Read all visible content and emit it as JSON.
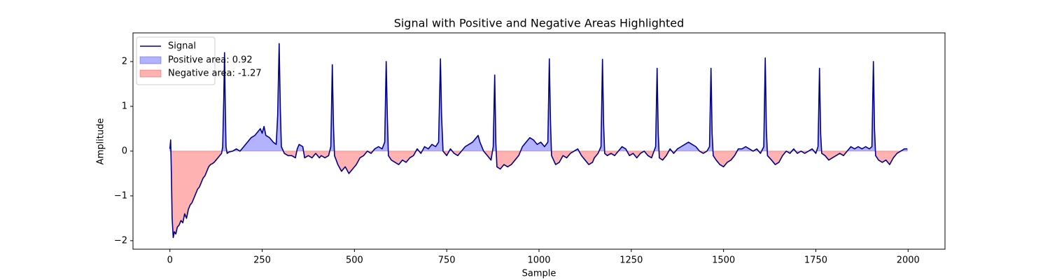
{
  "chart_data": {
    "type": "line",
    "title": "Signal with Positive and Negative Areas Highlighted",
    "xlabel": "Sample",
    "ylabel": "Amplitude",
    "x": [
      0,
      2,
      4,
      6,
      9,
      12,
      16,
      20,
      25,
      30,
      35,
      40,
      45,
      50,
      55,
      60,
      65,
      70,
      75,
      80,
      85,
      90,
      95,
      100,
      105,
      110,
      115,
      120,
      125,
      130,
      135,
      140,
      143,
      146,
      148,
      150,
      152,
      155,
      160,
      170,
      180,
      190,
      200,
      210,
      220,
      230,
      240,
      245,
      250,
      255,
      260,
      270,
      280,
      288,
      292,
      296,
      299,
      302,
      310,
      320,
      330,
      340,
      345,
      350,
      360,
      365,
      375,
      385,
      395,
      405,
      410,
      420,
      430,
      436,
      440,
      443,
      446,
      455,
      465,
      475,
      485,
      495,
      505,
      515,
      525,
      535,
      545,
      555,
      565,
      575,
      582,
      586,
      589,
      592,
      600,
      610,
      620,
      630,
      640,
      650,
      660,
      670,
      680,
      690,
      700,
      710,
      720,
      728,
      733,
      736,
      740,
      750,
      760,
      770,
      780,
      790,
      800,
      810,
      820,
      830,
      835,
      840,
      850,
      860,
      870,
      876,
      880,
      883,
      886,
      895,
      905,
      915,
      925,
      935,
      945,
      955,
      965,
      975,
      985,
      995,
      1005,
      1015,
      1024,
      1028,
      1031,
      1034,
      1045,
      1055,
      1065,
      1075,
      1085,
      1095,
      1105,
      1115,
      1125,
      1135,
      1145,
      1150,
      1160,
      1168,
      1172,
      1175,
      1178,
      1185,
      1195,
      1205,
      1215,
      1225,
      1235,
      1245,
      1255,
      1265,
      1275,
      1285,
      1295,
      1305,
      1316,
      1320,
      1323,
      1326,
      1335,
      1345,
      1355,
      1365,
      1375,
      1385,
      1395,
      1405,
      1415,
      1425,
      1435,
      1445,
      1455,
      1462,
      1466,
      1469,
      1472,
      1480,
      1490,
      1500,
      1510,
      1520,
      1530,
      1540,
      1550,
      1560,
      1570,
      1580,
      1590,
      1600,
      1609,
      1613,
      1616,
      1619,
      1630,
      1640,
      1650,
      1660,
      1670,
      1680,
      1690,
      1700,
      1710,
      1720,
      1730,
      1740,
      1750,
      1756,
      1760,
      1763,
      1766,
      1775,
      1785,
      1795,
      1805,
      1815,
      1825,
      1835,
      1845,
      1855,
      1865,
      1875,
      1885,
      1895,
      1902,
      1906,
      1909,
      1912,
      1920,
      1930,
      1940,
      1950,
      1960,
      1970,
      1980,
      1990,
      1998
    ],
    "series": [
      {
        "name": "Signal",
        "color": "#00008b",
        "values": [
          0.05,
          0.25,
          -0.5,
          -1.5,
          -1.93,
          -1.8,
          -1.85,
          -1.7,
          -1.65,
          -1.55,
          -1.6,
          -1.4,
          -1.5,
          -1.3,
          -1.2,
          -1.15,
          -1.05,
          -0.95,
          -0.85,
          -0.8,
          -0.7,
          -0.6,
          -0.55,
          -0.45,
          -0.35,
          -0.3,
          -0.28,
          -0.25,
          -0.2,
          -0.15,
          -0.1,
          -0.05,
          0.1,
          1.2,
          2.2,
          1.0,
          0.1,
          -0.05,
          -0.02,
          0.0,
          0.05,
          0.0,
          0.1,
          0.2,
          0.3,
          0.35,
          0.45,
          0.5,
          0.4,
          0.55,
          0.35,
          0.3,
          0.2,
          0.15,
          0.8,
          2.4,
          1.0,
          0.1,
          -0.05,
          -0.1,
          -0.1,
          -0.15,
          0.05,
          0.15,
          0.1,
          -0.15,
          -0.1,
          -0.15,
          -0.05,
          -0.15,
          -0.1,
          -0.15,
          -0.1,
          0.1,
          1.93,
          0.6,
          -0.1,
          -0.3,
          -0.45,
          -0.35,
          -0.5,
          -0.4,
          -0.3,
          -0.15,
          -0.1,
          0.0,
          -0.05,
          0.05,
          0.1,
          0.05,
          0.2,
          2.0,
          0.8,
          -0.1,
          -0.2,
          -0.25,
          -0.3,
          -0.2,
          -0.25,
          -0.15,
          -0.1,
          0.05,
          -0.05,
          0.1,
          0.05,
          0.15,
          0.1,
          0.2,
          2.06,
          0.8,
          0.0,
          -0.1,
          0.05,
          -0.05,
          -0.1,
          0.0,
          0.1,
          0.15,
          0.2,
          0.3,
          0.35,
          0.2,
          0.0,
          -0.1,
          -0.2,
          0.1,
          1.7,
          0.2,
          -0.35,
          -0.4,
          -0.3,
          -0.35,
          -0.3,
          -0.2,
          -0.1,
          0.1,
          0.2,
          0.3,
          0.25,
          0.15,
          0.2,
          0.1,
          0.2,
          2.06,
          0.7,
          -0.1,
          -0.3,
          -0.25,
          -0.1,
          -0.15,
          -0.05,
          0.0,
          0.05,
          -0.1,
          -0.2,
          -0.3,
          -0.25,
          -0.15,
          -0.05,
          0.1,
          2.05,
          0.6,
          -0.05,
          -0.1,
          -0.05,
          -0.1,
          0.0,
          0.1,
          0.05,
          -0.1,
          -0.05,
          -0.15,
          -0.05,
          0.0,
          -0.1,
          -0.15,
          0.1,
          1.85,
          0.4,
          -0.15,
          -0.2,
          -0.1,
          0.05,
          -0.05,
          0.05,
          0.1,
          0.15,
          0.2,
          0.15,
          0.1,
          0.0,
          -0.05,
          0.0,
          0.1,
          1.85,
          0.4,
          -0.1,
          -0.2,
          -0.3,
          -0.35,
          -0.25,
          -0.2,
          -0.1,
          0.05,
          0.05,
          0.1,
          0.05,
          0.0,
          0.05,
          -0.05,
          0.1,
          2.08,
          0.5,
          -0.1,
          -0.2,
          -0.3,
          -0.25,
          -0.1,
          0.0,
          -0.05,
          0.05,
          -0.05,
          0.0,
          -0.05,
          0.0,
          0.05,
          -0.05,
          0.1,
          1.85,
          0.4,
          -0.05,
          -0.1,
          -0.2,
          -0.15,
          -0.1,
          -0.05,
          -0.1,
          0.0,
          0.1,
          0.05,
          0.1,
          0.05,
          0.1,
          0.05,
          0.1,
          2.0,
          0.5,
          -0.1,
          -0.2,
          -0.25,
          -0.2,
          -0.3,
          -0.15,
          -0.05,
          0.0,
          0.05,
          0.05
        ]
      }
    ],
    "areas": [
      {
        "name": "Positive area: 0.92",
        "color": "#0000ff",
        "opacity": 0.3,
        "side": "positive"
      },
      {
        "name": "Negative area: -1.27",
        "color": "#ff0000",
        "opacity": 0.3,
        "side": "negative"
      }
    ],
    "xlim": [
      -100,
      2100
    ],
    "ylim": [
      -2.19,
      2.64
    ],
    "xticks": [
      0,
      250,
      500,
      750,
      1000,
      1250,
      1500,
      1750,
      2000
    ],
    "yticks": [
      {
        "value": -2,
        "label": "−2"
      },
      {
        "value": -1,
        "label": "−1"
      },
      0,
      1,
      2
    ],
    "legend": "upper left"
  }
}
